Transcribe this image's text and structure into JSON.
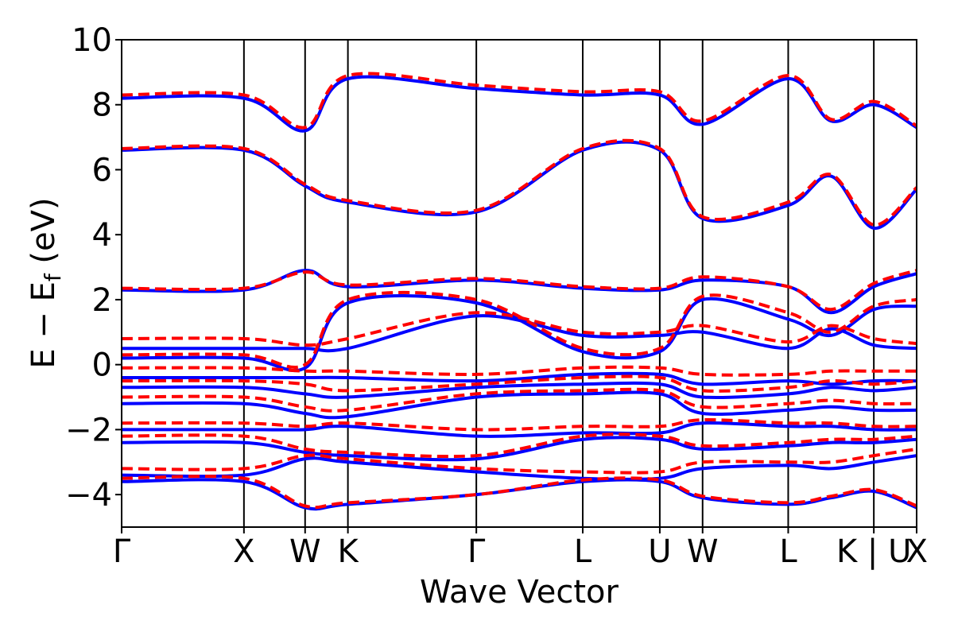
{
  "chart_data": {
    "type": "line",
    "title": "",
    "xlabel": "Wave Vector",
    "ylabel": "E − E",
    "ylabel_subscript": "f",
    "ylabel_unit": "(eV)",
    "ylim": [
      -5,
      10
    ],
    "yticks": [
      {
        "value": -4,
        "label": "−4"
      },
      {
        "value": -2,
        "label": "−2"
      },
      {
        "value": 0,
        "label": "0"
      },
      {
        "value": 2,
        "label": "2"
      },
      {
        "value": 4,
        "label": "4"
      },
      {
        "value": 6,
        "label": "6"
      },
      {
        "value": 8,
        "label": "8"
      },
      {
        "value": 10,
        "label": "10"
      }
    ],
    "kpath_length": 6.5,
    "high_symmetry_points": [
      {
        "label": "Γ",
        "k": 0.0
      },
      {
        "label": "X",
        "k": 1.0
      },
      {
        "label": "W",
        "k": 1.5
      },
      {
        "label": "K",
        "k": 1.85
      },
      {
        "label": "Γ",
        "k": 2.9
      },
      {
        "label": "L",
        "k": 3.77
      },
      {
        "label": "U",
        "k": 4.4
      },
      {
        "label": "W",
        "k": 4.75
      },
      {
        "label": "L",
        "k": 5.45
      },
      {
        "label": "K | U",
        "k": 6.15
      },
      {
        "label": "X",
        "k": 6.5
      }
    ],
    "series_styles": [
      {
        "role": "solid",
        "color": "#0000ff",
        "dash": "solid"
      },
      {
        "role": "dashed",
        "color": "#ff0000",
        "dash": "dashed"
      }
    ],
    "bands": [
      {
        "solid": [
          2.3,
          2.3,
          2.9,
          2.4,
          2.6,
          2.35,
          2.3,
          2.6,
          2.4,
          1.6,
          2.4,
          2.8
        ],
        "dashed": [
          2.35,
          2.35,
          2.85,
          2.45,
          2.65,
          2.4,
          2.35,
          2.7,
          2.4,
          1.7,
          2.5,
          2.9
        ]
      },
      {
        "solid": [
          6.6,
          6.6,
          5.5,
          5.0,
          4.7,
          6.6,
          6.6,
          4.5,
          4.9,
          5.8,
          4.2,
          5.4
        ],
        "dashed": [
          6.65,
          6.65,
          5.55,
          5.05,
          4.75,
          6.65,
          6.65,
          4.55,
          5.0,
          5.85,
          4.3,
          5.45
        ]
      },
      {
        "solid": [
          8.2,
          8.2,
          7.2,
          8.8,
          8.5,
          8.3,
          8.3,
          7.4,
          8.8,
          7.5,
          8.0,
          7.3
        ],
        "dashed": [
          8.3,
          8.3,
          7.3,
          8.9,
          8.6,
          8.4,
          8.4,
          7.5,
          8.9,
          7.55,
          8.1,
          7.35
        ]
      },
      {
        "solid": [
          0.5,
          0.5,
          0.5,
          0.5,
          1.5,
          0.9,
          0.9,
          1.0,
          0.5,
          1.1,
          0.6,
          0.5
        ],
        "dashed": [
          0.8,
          0.8,
          0.6,
          0.8,
          1.6,
          1.0,
          1.0,
          1.2,
          0.7,
          1.2,
          0.8,
          0.65
        ]
      },
      {
        "solid": [
          0.2,
          0.2,
          -0.1,
          1.9,
          1.9,
          0.4,
          0.4,
          2.0,
          1.4,
          0.9,
          1.7,
          1.8
        ],
        "dashed": [
          0.3,
          0.3,
          0.0,
          2.0,
          2.0,
          0.5,
          0.5,
          2.1,
          1.6,
          1.0,
          1.8,
          2.0
        ]
      },
      {
        "solid": [
          -0.4,
          -0.4,
          -0.4,
          -0.4,
          -0.5,
          -0.3,
          -0.3,
          -0.6,
          -0.5,
          -0.6,
          -0.5,
          -0.5
        ],
        "dashed": [
          -0.1,
          -0.1,
          -0.2,
          -0.2,
          -0.3,
          -0.1,
          -0.1,
          -0.3,
          -0.3,
          -0.2,
          -0.2,
          -0.2
        ]
      },
      {
        "solid": [
          -0.7,
          -0.7,
          -0.9,
          -1.0,
          -0.7,
          -0.6,
          -0.6,
          -1.0,
          -0.9,
          -0.7,
          -0.8,
          -0.7
        ],
        "dashed": [
          -0.5,
          -0.5,
          -0.6,
          -0.8,
          -0.6,
          -0.4,
          -0.4,
          -0.8,
          -0.7,
          -0.5,
          -0.6,
          -0.5
        ]
      },
      {
        "solid": [
          -1.2,
          -1.2,
          -1.5,
          -1.6,
          -1.0,
          -0.9,
          -0.9,
          -1.5,
          -1.4,
          -1.3,
          -1.4,
          -1.4
        ],
        "dashed": [
          -1.0,
          -1.0,
          -1.3,
          -1.4,
          -0.9,
          -0.8,
          -0.8,
          -1.3,
          -1.2,
          -1.1,
          -1.2,
          -1.2
        ]
      },
      {
        "solid": [
          -2.0,
          -2.0,
          -2.0,
          -1.9,
          -2.2,
          -2.1,
          -2.1,
          -1.8,
          -1.9,
          -1.9,
          -2.0,
          -2.0
        ],
        "dashed": [
          -1.8,
          -1.8,
          -1.9,
          -1.8,
          -2.0,
          -1.9,
          -1.9,
          -1.7,
          -1.8,
          -1.8,
          -1.9,
          -1.9
        ]
      },
      {
        "solid": [
          -2.4,
          -2.4,
          -2.7,
          -2.8,
          -2.9,
          -2.3,
          -2.3,
          -2.6,
          -2.5,
          -2.4,
          -2.4,
          -2.3
        ],
        "dashed": [
          -2.2,
          -2.2,
          -2.6,
          -2.7,
          -2.8,
          -2.2,
          -2.2,
          -2.5,
          -2.4,
          -2.3,
          -2.3,
          -2.2
        ]
      },
      {
        "solid": [
          -3.4,
          -3.4,
          -2.9,
          -3.0,
          -3.3,
          -3.5,
          -3.5,
          -3.2,
          -3.1,
          -3.2,
          -3.0,
          -2.8
        ],
        "dashed": [
          -3.2,
          -3.2,
          -2.8,
          -2.9,
          -3.2,
          -3.3,
          -3.3,
          -3.0,
          -3.0,
          -3.0,
          -2.8,
          -2.6
        ]
      },
      {
        "solid": [
          -3.6,
          -3.6,
          -4.4,
          -4.3,
          -4.0,
          -3.6,
          -3.6,
          -4.1,
          -4.3,
          -4.1,
          -3.9,
          -4.4
        ],
        "dashed": [
          -3.5,
          -3.5,
          -4.35,
          -4.25,
          -4.0,
          -3.55,
          -3.55,
          -4.05,
          -4.25,
          -4.05,
          -3.85,
          -4.35
        ]
      }
    ]
  }
}
